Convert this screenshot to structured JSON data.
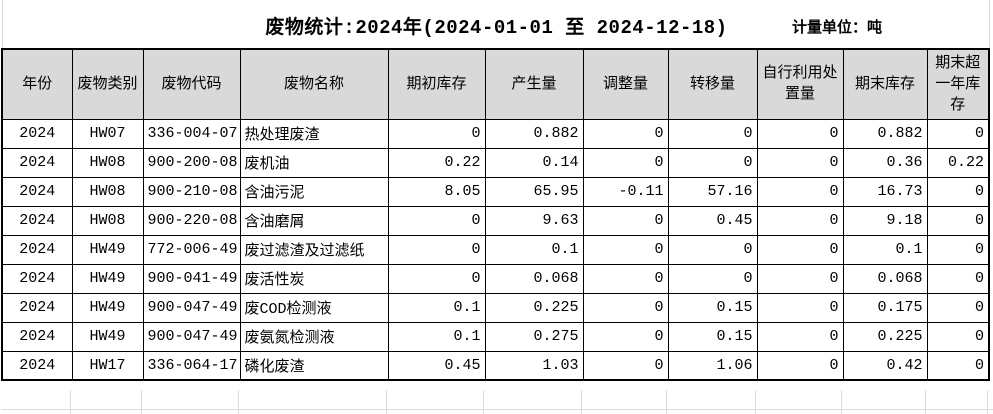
{
  "report": {
    "title": "废物统计:2024年(2024-01-01 至 2024-12-18)",
    "unit_label": "计量单位：吨"
  },
  "table": {
    "columns": [
      {
        "key": "year",
        "label": "年份",
        "align": "center",
        "width": 70
      },
      {
        "key": "category",
        "label": "废物类别",
        "align": "center",
        "width": 71
      },
      {
        "key": "code",
        "label": "废物代码",
        "align": "center",
        "width": 97
      },
      {
        "key": "name",
        "label": "废物名称",
        "align": "left",
        "width": 148
      },
      {
        "key": "opening",
        "label": "期初库存",
        "align": "right",
        "width": 97
      },
      {
        "key": "generated",
        "label": "产生量",
        "align": "right",
        "width": 98
      },
      {
        "key": "adjusted",
        "label": "调整量",
        "align": "right",
        "width": 85
      },
      {
        "key": "transferred",
        "label": "转移量",
        "align": "right",
        "width": 89
      },
      {
        "key": "self_disposed",
        "label": "自行利用处置量",
        "align": "right",
        "width": 86
      },
      {
        "key": "closing",
        "label": "期末库存",
        "align": "right",
        "width": 84
      },
      {
        "key": "over_one_year",
        "label": "期末超一年库存",
        "align": "right",
        "width": 62
      }
    ],
    "rows": [
      [
        "2024",
        "HW07",
        "336-004-07",
        "热处理废渣",
        "0",
        "0.882",
        "0",
        "0",
        "0",
        "0.882",
        "0"
      ],
      [
        "2024",
        "HW08",
        "900-200-08",
        "废机油",
        "0.22",
        "0.14",
        "0",
        "0",
        "0",
        "0.36",
        "0.22"
      ],
      [
        "2024",
        "HW08",
        "900-210-08",
        "含油污泥",
        "8.05",
        "65.95",
        "-0.11",
        "57.16",
        "0",
        "16.73",
        "0"
      ],
      [
        "2024",
        "HW08",
        "900-220-08",
        "含油磨屑",
        "0",
        "9.63",
        "0",
        "0.45",
        "0",
        "9.18",
        "0"
      ],
      [
        "2024",
        "HW49",
        "772-006-49",
        "废过滤渣及过滤纸",
        "0",
        "0.1",
        "0",
        "0",
        "0",
        "0.1",
        "0"
      ],
      [
        "2024",
        "HW49",
        "900-041-49",
        "废活性炭",
        "0",
        "0.068",
        "0",
        "0",
        "0",
        "0.068",
        "0"
      ],
      [
        "2024",
        "HW49",
        "900-047-49",
        "废COD检测液",
        "0.1",
        "0.225",
        "0",
        "0.15",
        "0",
        "0.175",
        "0"
      ],
      [
        "2024",
        "HW49",
        "900-047-49",
        "废氨氮检测液",
        "0.1",
        "0.275",
        "0",
        "0.15",
        "0",
        "0.225",
        "0"
      ],
      [
        "2024",
        "HW17",
        "336-064-17",
        "磷化废渣",
        "0.45",
        "1.03",
        "0",
        "1.06",
        "0",
        "0.42",
        "0"
      ]
    ]
  },
  "colors": {
    "page_bg": "#FFFFFF",
    "header_bg": "#D9D9D9",
    "table_border": "#000000",
    "faint_grid": "#DCDCDC",
    "text": "#000000"
  }
}
